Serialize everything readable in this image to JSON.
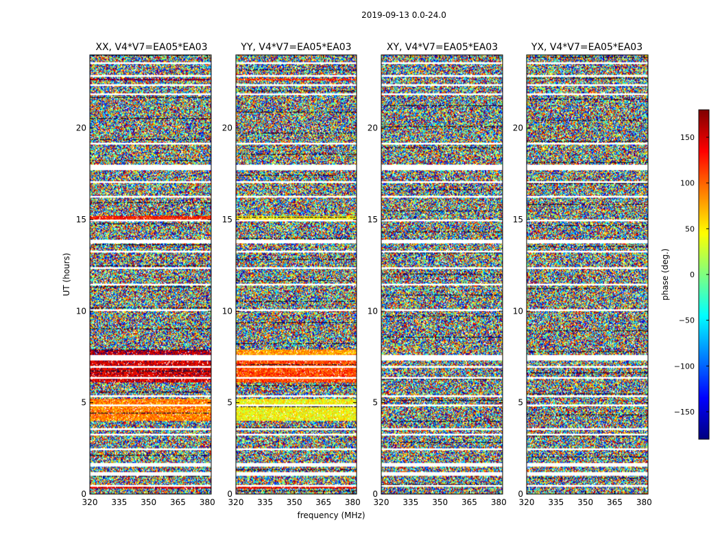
{
  "figure": {
    "suptitle": "2019-09-13 0.0-24.0",
    "xlabel": "frequency (MHz)",
    "ylabel": "UT (hours)",
    "colorbar_label": "phase (deg.)"
  },
  "chart_data": {
    "type": "heatmap",
    "colormap": "jet",
    "x_range": [
      320,
      382
    ],
    "y_range": [
      0,
      24
    ],
    "x_ticks": [
      320,
      335,
      350,
      365,
      380
    ],
    "x_tick_labels": [
      "320",
      "335",
      "350",
      "365",
      "380"
    ],
    "y_ticks": [
      0,
      5,
      10,
      15,
      20
    ],
    "y_tick_labels": [
      "0",
      "5",
      "10",
      "15",
      "20"
    ],
    "color_range": [
      -180,
      180
    ],
    "colorbar_ticks": [
      150,
      100,
      50,
      0,
      -50,
      -100,
      -150
    ],
    "colorbar_tick_labels": [
      "150",
      "100",
      "50",
      "0",
      "−50",
      "−100",
      "−150"
    ],
    "panels": [
      {
        "title": "XX, V4*V7=EA05*EA03",
        "coherent_bands": [
          {
            "y": [
              4.0,
              5.2
            ],
            "phase": 90
          },
          {
            "y": [
              7.6,
              7.9
            ],
            "phase": 160
          },
          {
            "y": [
              6.1,
              7.3
            ],
            "phase": 150
          },
          {
            "y": [
              15.0,
              15.2
            ],
            "phase": 130
          },
          {
            "y": [
              0.3,
              0.4
            ],
            "phase": 150
          },
          {
            "y": [
              22.6,
              22.7
            ],
            "phase": 170
          }
        ]
      },
      {
        "title": "YY, V4*V7=EA05*EA03",
        "coherent_bands": [
          {
            "y": [
              4.0,
              5.2
            ],
            "phase": 45
          },
          {
            "y": [
              7.6,
              7.9
            ],
            "phase": 80
          },
          {
            "y": [
              6.1,
              7.3
            ],
            "phase": 110
          },
          {
            "y": [
              15.0,
              15.2
            ],
            "phase": 50
          },
          {
            "y": [
              0.3,
              0.4
            ],
            "phase": 140
          },
          {
            "y": [
              22.6,
              22.7
            ],
            "phase": 120
          }
        ]
      },
      {
        "title": "XY, V4*V7=EA05*EA03",
        "coherent_bands": []
      },
      {
        "title": "YX, V4*V7=EA05*EA03",
        "coherent_bands": []
      }
    ],
    "flagged_rows": [
      [
        23.5,
        23.6
      ],
      [
        22.8,
        22.9
      ],
      [
        22.3,
        22.4
      ],
      [
        21.8,
        21.9
      ],
      [
        19.1,
        19.2
      ],
      [
        17.7,
        18.0
      ],
      [
        17.0,
        17.1
      ],
      [
        16.2,
        16.3
      ],
      [
        14.9,
        15.0
      ],
      [
        13.7,
        13.9
      ],
      [
        13.2,
        13.3
      ],
      [
        12.3,
        12.4
      ],
      [
        11.4,
        11.5
      ],
      [
        10.0,
        10.1
      ],
      [
        7.3,
        7.6
      ],
      [
        6.9,
        7.0
      ],
      [
        6.3,
        6.4
      ],
      [
        5.3,
        5.4
      ],
      [
        4.8,
        4.9
      ],
      [
        3.5,
        3.6
      ],
      [
        3.2,
        3.3
      ],
      [
        2.4,
        2.5
      ],
      [
        1.5,
        1.7
      ],
      [
        1.0,
        1.2
      ],
      [
        0.4,
        0.5
      ]
    ]
  }
}
